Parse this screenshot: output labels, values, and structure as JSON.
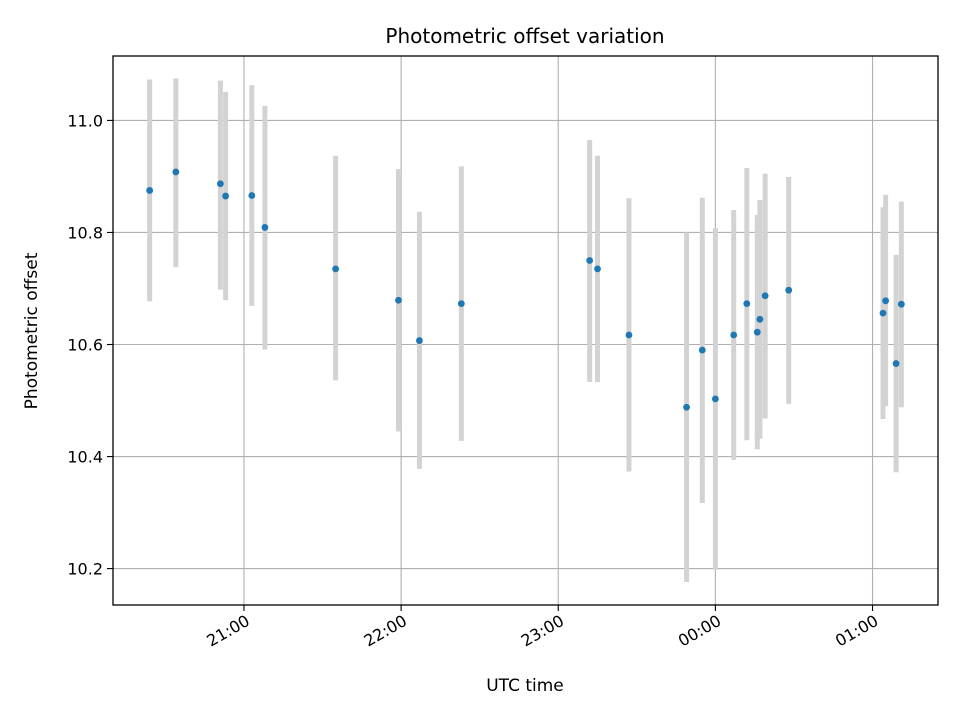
{
  "chart_data": {
    "type": "scatter",
    "title": "Photometric offset variation",
    "xlabel": "UTC time",
    "ylabel": "Photometric offset",
    "grid": true,
    "colors": {
      "point": "#1f77b4",
      "errorbar": "#d3d3d3",
      "grid": "#b0b0b0",
      "axes": "#000000"
    },
    "xlim": [
      "20:10",
      "01:25"
    ],
    "ylim": [
      10.135,
      11.115
    ],
    "x_ticks": [
      "21:00",
      "22:00",
      "23:00",
      "00:00",
      "01:00"
    ],
    "y_ticks": [
      10.2,
      10.4,
      10.6,
      10.8,
      11.0
    ],
    "y_tick_labels": [
      "10.2",
      "10.4",
      "10.6",
      "10.8",
      "11.0"
    ],
    "points": [
      {
        "time": "20:24",
        "value": 10.875,
        "low": 10.677,
        "high": 11.073
      },
      {
        "time": "20:34",
        "value": 10.908,
        "low": 10.738,
        "high": 11.075
      },
      {
        "time": "20:51",
        "value": 10.887,
        "low": 10.698,
        "high": 11.071
      },
      {
        "time": "20:53",
        "value": 10.865,
        "low": 10.679,
        "high": 11.051
      },
      {
        "time": "21:03",
        "value": 10.866,
        "low": 10.669,
        "high": 11.063
      },
      {
        "time": "21:08",
        "value": 10.809,
        "low": 10.591,
        "high": 11.026
      },
      {
        "time": "21:35",
        "value": 10.735,
        "low": 10.536,
        "high": 10.937
      },
      {
        "time": "21:59",
        "value": 10.679,
        "low": 10.445,
        "high": 10.913
      },
      {
        "time": "22:07",
        "value": 10.607,
        "low": 10.378,
        "high": 10.837
      },
      {
        "time": "22:23",
        "value": 10.673,
        "low": 10.428,
        "high": 10.918
      },
      {
        "time": "23:12",
        "value": 10.75,
        "low": 10.533,
        "high": 10.965
      },
      {
        "time": "23:15",
        "value": 10.735,
        "low": 10.533,
        "high": 10.937
      },
      {
        "time": "23:27",
        "value": 10.617,
        "low": 10.373,
        "high": 10.861
      },
      {
        "time": "23:49",
        "value": 10.488,
        "low": 10.176,
        "high": 10.8
      },
      {
        "time": "23:55",
        "value": 10.59,
        "low": 10.317,
        "high": 10.862
      },
      {
        "time": "00:00",
        "value": 10.503,
        "low": 10.198,
        "high": 10.808
      },
      {
        "time": "00:07",
        "value": 10.617,
        "low": 10.394,
        "high": 10.84
      },
      {
        "time": "00:12",
        "value": 10.673,
        "low": 10.429,
        "high": 10.915
      },
      {
        "time": "00:16",
        "value": 10.622,
        "low": 10.413,
        "high": 10.831
      },
      {
        "time": "00:17",
        "value": 10.645,
        "low": 10.432,
        "high": 10.858
      },
      {
        "time": "00:19",
        "value": 10.687,
        "low": 10.468,
        "high": 10.905
      },
      {
        "time": "00:28",
        "value": 10.697,
        "low": 10.494,
        "high": 10.899
      },
      {
        "time": "01:04",
        "value": 10.656,
        "low": 10.467,
        "high": 10.845
      },
      {
        "time": "01:05",
        "value": 10.678,
        "low": 10.49,
        "high": 10.867
      },
      {
        "time": "01:09",
        "value": 10.566,
        "low": 10.372,
        "high": 10.76
      },
      {
        "time": "01:11",
        "value": 10.672,
        "low": 10.488,
        "high": 10.855
      }
    ]
  }
}
